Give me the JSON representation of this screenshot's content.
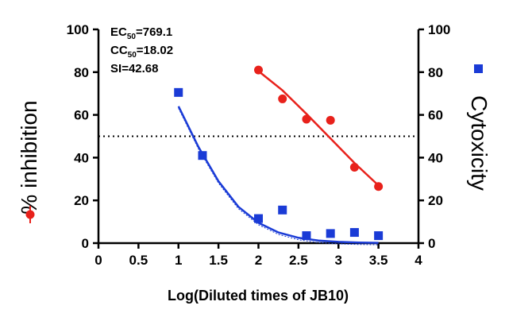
{
  "chart_data": {
    "type": "scatter",
    "xlabel": "Log(Diluted times of JB10)",
    "ylabel_left": "% inhibition",
    "ylabel_right": "Cytoxicity",
    "xlim": [
      0,
      4
    ],
    "ylim": [
      0,
      100
    ],
    "x_ticks": [
      "0",
      "0.5",
      "1",
      "1.5",
      "2",
      "2.5",
      "3",
      "3.5",
      "4"
    ],
    "y_ticks": [
      "0",
      "20",
      "40",
      "60",
      "80",
      "100"
    ],
    "reference_line": {
      "y": 50,
      "style": "dotted"
    },
    "annotations": [
      {
        "prefix": "EC",
        "sub": "50",
        "suffix": "=769.1"
      },
      {
        "prefix": "CC",
        "sub": "50",
        "suffix": "=18.02"
      },
      {
        "prefix": "SI",
        "sub": "",
        "suffix": "=42.68"
      }
    ],
    "series": [
      {
        "axis": "left",
        "marker": "circle",
        "color": "#e8211b",
        "x": [
          2.0,
          2.3,
          2.6,
          2.9,
          3.2,
          3.5
        ],
        "y": [
          81,
          67.5,
          58,
          57.5,
          35.5,
          26.5
        ],
        "fit_curve": {
          "x": [
            2.0,
            2.3,
            2.6,
            2.9,
            3.2,
            3.5
          ],
          "y": [
            80.5,
            71.5,
            60.5,
            49,
            37.5,
            27
          ]
        }
      },
      {
        "axis": "right",
        "marker": "square",
        "color": "#1a3bd6",
        "x": [
          1.0,
          1.3,
          2.0,
          2.3,
          2.6,
          2.9,
          3.2,
          3.5
        ],
        "y": [
          70.5,
          41,
          11.5,
          15.5,
          3.5,
          4.5,
          5,
          3.5
        ],
        "fit_curve": {
          "x": [
            1.0,
            1.25,
            1.5,
            1.75,
            2.0,
            2.25,
            2.5,
            2.75,
            3.0,
            3.25,
            3.5
          ],
          "y": [
            64,
            45,
            29,
            17,
            9.5,
            5,
            2.5,
            1.2,
            0.6,
            0.3,
            0.15
          ]
        }
      }
    ]
  }
}
